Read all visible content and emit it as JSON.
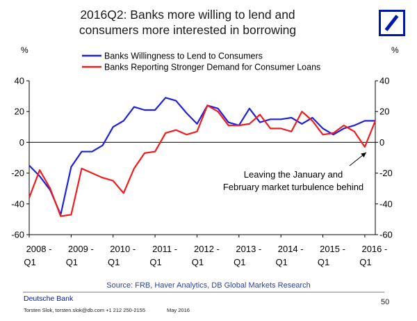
{
  "title": {
    "line1": "2016Q2: Banks more willing to lend and",
    "line2": "consumers more interested in borrowing"
  },
  "colors": {
    "series_1": "#1f1fe0",
    "series_2": "#ef1d1d",
    "brand": "#0018a8"
  },
  "logo_icon": "deutsche-bank-slash-logo",
  "footer": {
    "source": "Source:  FRB, Haver Analytics, DB Global Markets Research",
    "brand": "Deutsche Bank",
    "page": "50",
    "contact": "Torsten Slok, torsten.slok@db.com  +1 212 250-2155",
    "date": "May 2016"
  },
  "chart_data": {
    "type": "line",
    "ylabel_left": "%",
    "ylabel_right": "%",
    "ylim": [
      -60,
      40
    ],
    "yticks": [
      -60,
      -40,
      -20,
      0,
      20,
      40
    ],
    "ytick_labels": [
      "-60",
      "-40",
      "-20",
      "0",
      "20",
      "40"
    ],
    "xlim": [
      2008.0,
      2016.25
    ],
    "xtick_labels": [
      [
        "2008 -",
        "Q1"
      ],
      [
        "2009 -",
        "Q1"
      ],
      [
        "2010 -",
        "Q1"
      ],
      [
        "2011 -",
        "Q1"
      ],
      [
        "2012 -",
        "Q1"
      ],
      [
        "2013 -",
        "Q1"
      ],
      [
        "2014 -",
        "Q1"
      ],
      [
        "2015 -",
        "Q1"
      ],
      [
        "2016 -",
        "Q1"
      ]
    ],
    "xticks": [
      2008,
      2009,
      2010,
      2011,
      2012,
      2013,
      2014,
      2015,
      2016
    ],
    "x": [
      2008.0,
      2008.25,
      2008.5,
      2008.75,
      2009.0,
      2009.25,
      2009.5,
      2009.75,
      2010.0,
      2010.25,
      2010.5,
      2010.75,
      2011.0,
      2011.25,
      2011.5,
      2011.75,
      2012.0,
      2012.25,
      2012.5,
      2012.75,
      2013.0,
      2013.25,
      2013.5,
      2013.75,
      2014.0,
      2014.25,
      2014.5,
      2014.75,
      2015.0,
      2015.25,
      2015.5,
      2015.75,
      2016.0,
      2016.25
    ],
    "series": [
      {
        "name": "Banks Willingness to Lend to Consumers",
        "values": [
          -15,
          -22,
          -31,
          -47,
          -16,
          -6,
          -6,
          -2,
          10,
          14,
          23,
          21,
          21,
          29,
          27,
          19,
          12,
          24,
          22,
          13,
          11,
          22,
          13,
          15,
          15,
          16,
          12,
          16,
          9,
          5,
          9,
          11,
          14,
          14
        ]
      },
      {
        "name": "Banks Reporting Stronger Demand for Consumer Loans",
        "values": [
          -36,
          -18,
          -30,
          -48,
          -47,
          -17,
          -20,
          -23,
          -25,
          -33,
          -17,
          -7,
          -6,
          6,
          8,
          5,
          7,
          24,
          20,
          11,
          11,
          12,
          18,
          9,
          9,
          7,
          20,
          14,
          5,
          6,
          11,
          7,
          -3,
          14
        ]
      }
    ],
    "annotation": [
      "Leaving the January and",
      "February market turbulence behind"
    ],
    "annotation_target": {
      "x": 2016.0,
      "y": -3
    }
  }
}
